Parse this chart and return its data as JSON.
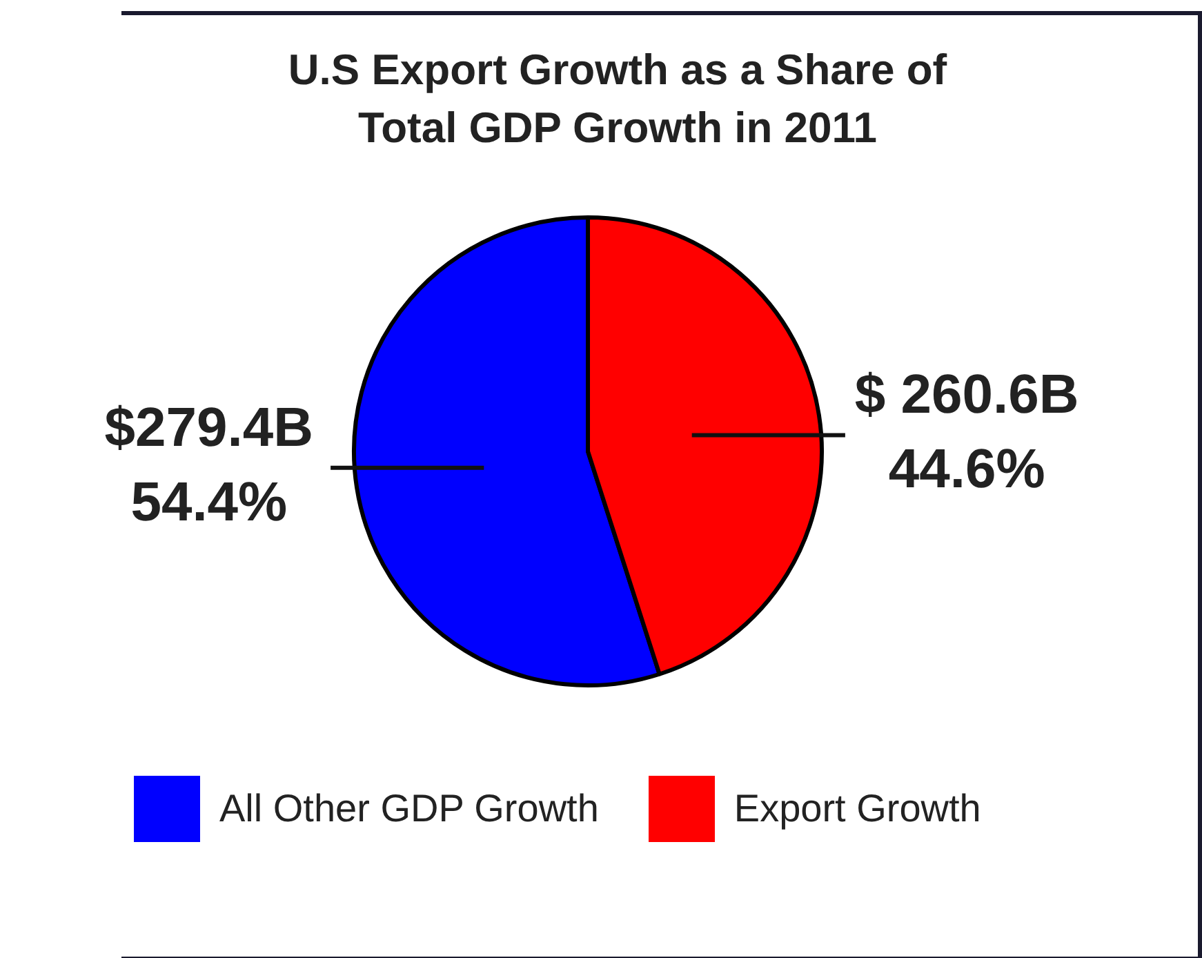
{
  "chart_data": {
    "type": "pie",
    "title": "U.S Export Growth as a Share of Total GDP Growth in 2011",
    "categories": [
      "All Other GDP Growth",
      "Export Growth"
    ],
    "values": [
      54.4,
      44.6
    ],
    "colors": [
      "#0000ff",
      "#ff0000"
    ],
    "value_labels": [
      "$279.4B\n54.4%",
      "$ 260.6B\n44.6%"
    ],
    "legend": "bottom"
  }
}
